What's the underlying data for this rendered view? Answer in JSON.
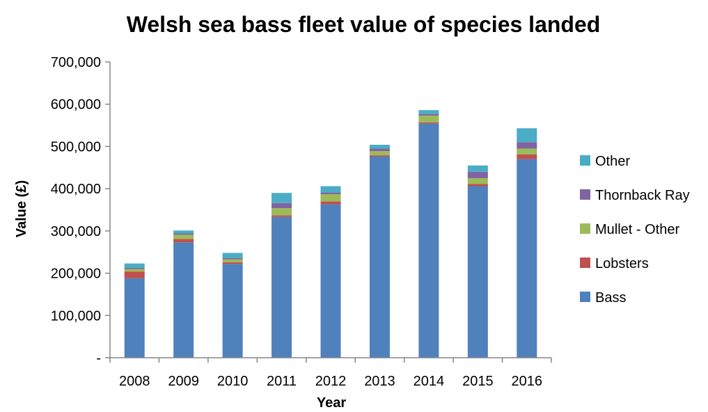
{
  "chart_data": {
    "type": "bar",
    "stacked": true,
    "title": "Welsh sea bass fleet value of species landed",
    "xlabel": "Year",
    "ylabel": "Value (£)",
    "ylim": [
      0,
      700000
    ],
    "yticks": [
      0,
      100000,
      200000,
      300000,
      400000,
      500000,
      600000,
      700000
    ],
    "ytick_labels": [
      "-",
      "100,000",
      "200,000",
      "300,000",
      "400,000",
      "500,000",
      "600,000",
      "700,000"
    ],
    "grid": false,
    "legend_position": "right",
    "categories": [
      "2008",
      "2009",
      "2010",
      "2011",
      "2012",
      "2013",
      "2014",
      "2015",
      "2016"
    ],
    "series": [
      {
        "name": "Bass",
        "color": "#4F81BD",
        "values": [
          188000,
          273000,
          222000,
          333000,
          363000,
          476000,
          554000,
          406000,
          470000
        ]
      },
      {
        "name": "Lobsters",
        "color": "#C0504D",
        "values": [
          16000,
          8000,
          4000,
          4000,
          7000,
          3000,
          3000,
          5000,
          11000
        ]
      },
      {
        "name": "Mullet - Other",
        "color": "#9BBB59",
        "values": [
          6000,
          10000,
          7000,
          17000,
          17000,
          10000,
          16000,
          14000,
          14000
        ]
      },
      {
        "name": "Thornback Ray",
        "color": "#8064A2",
        "values": [
          3000,
          3000,
          3000,
          12000,
          4000,
          6000,
          4000,
          15000,
          15000
        ]
      },
      {
        "name": "Other",
        "color": "#4BACC6",
        "values": [
          10000,
          7000,
          12000,
          24000,
          15000,
          9000,
          9000,
          15000,
          33000
        ]
      }
    ]
  }
}
